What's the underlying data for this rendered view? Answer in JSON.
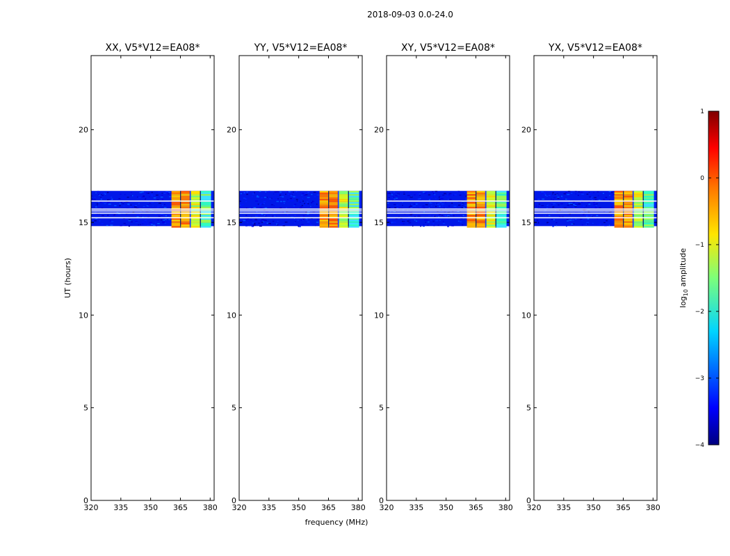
{
  "figure": {
    "suptitle": "2018-09-03 0.0-24.0",
    "xlabel": "frequency (MHz)",
    "ylabel": "UT (hours)"
  },
  "chart_data": {
    "type": "heatmap",
    "x_range": [
      320,
      382
    ],
    "y_range": [
      0,
      24
    ],
    "x_ticks": [
      320,
      335,
      350,
      365,
      380
    ],
    "y_ticks": [
      0,
      5,
      10,
      15,
      20
    ],
    "observed_time_range_hours": [
      14.8,
      16.7
    ],
    "rfi_band_mhz": [
      360.5,
      380.5
    ],
    "panels": [
      {
        "title": "XX, V5*V12=EA08*",
        "band_start_mhz": 360.5,
        "gap_hours": [
          15.25,
          15.5,
          15.62,
          15.72,
          16.15
        ]
      },
      {
        "title": "YY, V5*V12=EA08*",
        "band_start_mhz": 360.5,
        "gap_hours": [
          15.25,
          15.5,
          15.62,
          15.72
        ]
      },
      {
        "title": "XY, V5*V12=EA08*",
        "band_start_mhz": 360.5,
        "gap_hours": [
          15.25,
          15.5,
          15.62,
          15.72,
          16.15
        ]
      },
      {
        "title": "YX, V5*V12=EA08*",
        "band_start_mhz": 360.5,
        "gap_hours": [
          15.25,
          15.5,
          15.62,
          15.72,
          16.15
        ]
      }
    ],
    "colorbar": {
      "label_prefix": "log",
      "label_subscript": "10",
      "label_suffix": " amplitude",
      "range": [
        -4,
        1
      ],
      "ticks": [
        "1",
        "0",
        "−1",
        "−2",
        "−3",
        "−4"
      ],
      "tick_values": [
        1,
        0,
        -1,
        -2,
        -3,
        -4
      ],
      "colormap": "jet"
    }
  }
}
